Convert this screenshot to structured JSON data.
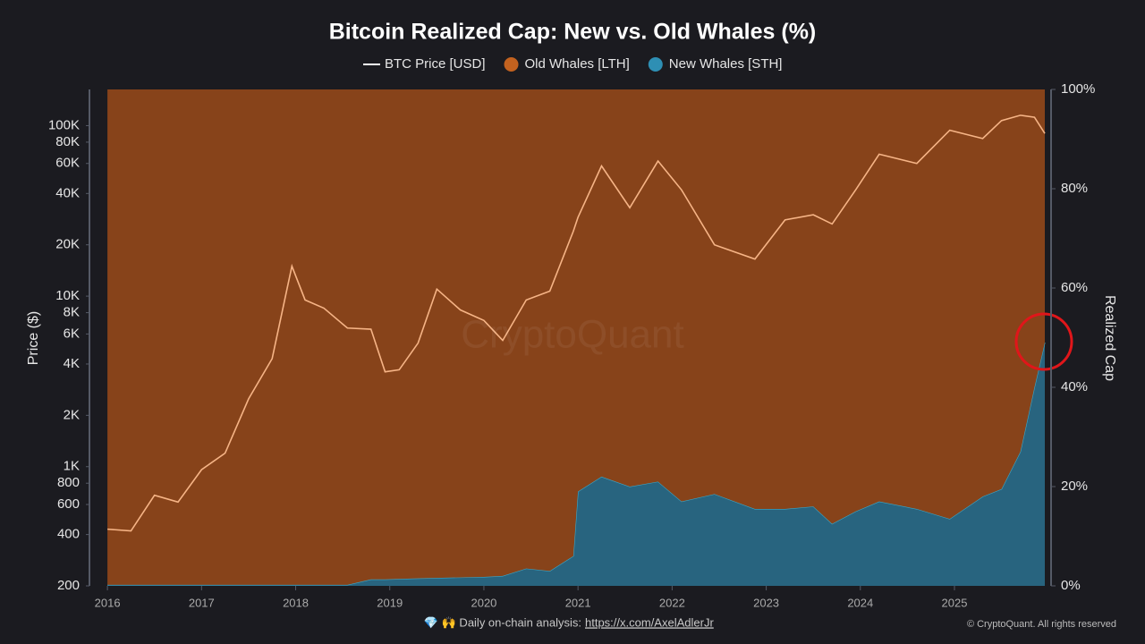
{
  "chart_data": {
    "type": "area",
    "title": "Bitcoin Realized Cap: New vs. Old Whales (%)",
    "y_label": "Price ($)",
    "y2_label": "Realized Cap",
    "watermark": "CryptoQuant",
    "footer_note": "💎 🙌 Daily on-chain analysis:",
    "footer_link": "https://x.com/AxelAdlerJr",
    "copyright": "© CryptoQuant. All rights reserved",
    "log_y": true,
    "x": [
      2016.0,
      2016.25,
      2016.5,
      2016.75,
      2017.0,
      2017.25,
      2017.5,
      2017.75,
      2017.96,
      2018.1,
      2018.3,
      2018.55,
      2018.8,
      2018.95,
      2019.1,
      2019.3,
      2019.5,
      2019.75,
      2020.0,
      2020.2,
      2020.45,
      2020.7,
      2020.95,
      2021.0,
      2021.25,
      2021.55,
      2021.85,
      2022.1,
      2022.45,
      2022.88,
      2023.2,
      2023.5,
      2023.7,
      2023.95,
      2024.2,
      2024.6,
      2024.95,
      2025.3,
      2025.5,
      2025.7,
      2025.85,
      2025.96
    ],
    "xlim": [
      2015.98,
      2025.96
    ],
    "xticks": [
      2016,
      2017,
      2018,
      2019,
      2020,
      2021,
      2022,
      2023,
      2024,
      2025
    ],
    "ylim": [
      200,
      163000
    ],
    "yticks": [
      200,
      400,
      600,
      800,
      {
        "value": 1000,
        "label": "1K"
      },
      {
        "value": 2000,
        "label": "2K"
      },
      {
        "value": 4000,
        "label": "4K"
      },
      {
        "value": 6000,
        "label": "6K"
      },
      {
        "value": 8000,
        "label": "8K"
      },
      {
        "value": 10000,
        "label": "10K"
      },
      {
        "value": 20000,
        "label": "20K"
      },
      {
        "value": 40000,
        "label": "40K"
      },
      {
        "value": 60000,
        "label": "60K"
      },
      {
        "value": 80000,
        "label": "80K"
      },
      {
        "value": 100000,
        "label": "100K"
      }
    ],
    "y2lim": [
      0,
      100
    ],
    "y2ticks": [
      {
        "value": 0,
        "label": "0%"
      },
      {
        "value": 20,
        "label": "20%"
      },
      {
        "value": 40,
        "label": "40%"
      },
      {
        "value": 60,
        "label": "60%"
      },
      {
        "value": 80,
        "label": "80%"
      },
      {
        "value": 100,
        "label": "100%"
      }
    ],
    "series": [
      {
        "name": "BTC Price [USD]",
        "color": "#f6b486",
        "kind": "line",
        "values": [
          430,
          420,
          680,
          620,
          960,
          1200,
          2500,
          4300,
          15000,
          9500,
          8500,
          6500,
          6400,
          3600,
          3700,
          5300,
          11000,
          8300,
          7200,
          5500,
          9500,
          10700,
          24000,
          29000,
          58000,
          33000,
          62000,
          42000,
          20000,
          16500,
          28000,
          30000,
          26500,
          42000,
          68000,
          60000,
          94000,
          84000,
          107000,
          115000,
          112000,
          90000
        ]
      },
      {
        "name": "Old Whales [LTH]",
        "color": "#87431a",
        "kind": "area",
        "axis": "y2",
        "values": [
          99.8,
          99.8,
          99.8,
          99.8,
          99.8,
          99.8,
          99.8,
          99.8,
          99.8,
          99.8,
          99.8,
          99.8,
          98.7,
          98.7,
          98.6,
          98.5,
          98.4,
          98.3,
          98.2,
          98,
          96.5,
          97,
          94,
          81,
          78,
          80,
          79,
          83,
          81.5,
          84.5,
          84.5,
          84,
          87.5,
          85,
          83,
          84.5,
          86.5,
          82,
          80.5,
          73,
          60,
          51
        ]
      },
      {
        "name": "New Whales [STH]",
        "color": "#28647f",
        "kind": "area",
        "axis": "y2",
        "values": [
          0.2,
          0.2,
          0.2,
          0.2,
          0.2,
          0.2,
          0.2,
          0.2,
          0.2,
          0.2,
          0.2,
          0.2,
          1.3,
          1.3,
          1.4,
          1.5,
          1.6,
          1.7,
          1.8,
          2,
          3.5,
          3,
          6,
          19,
          22,
          20,
          21,
          17,
          18.5,
          15.5,
          15.5,
          16,
          12.5,
          15,
          17,
          15.5,
          13.5,
          18,
          19.5,
          27,
          40,
          49
        ]
      }
    ]
  }
}
